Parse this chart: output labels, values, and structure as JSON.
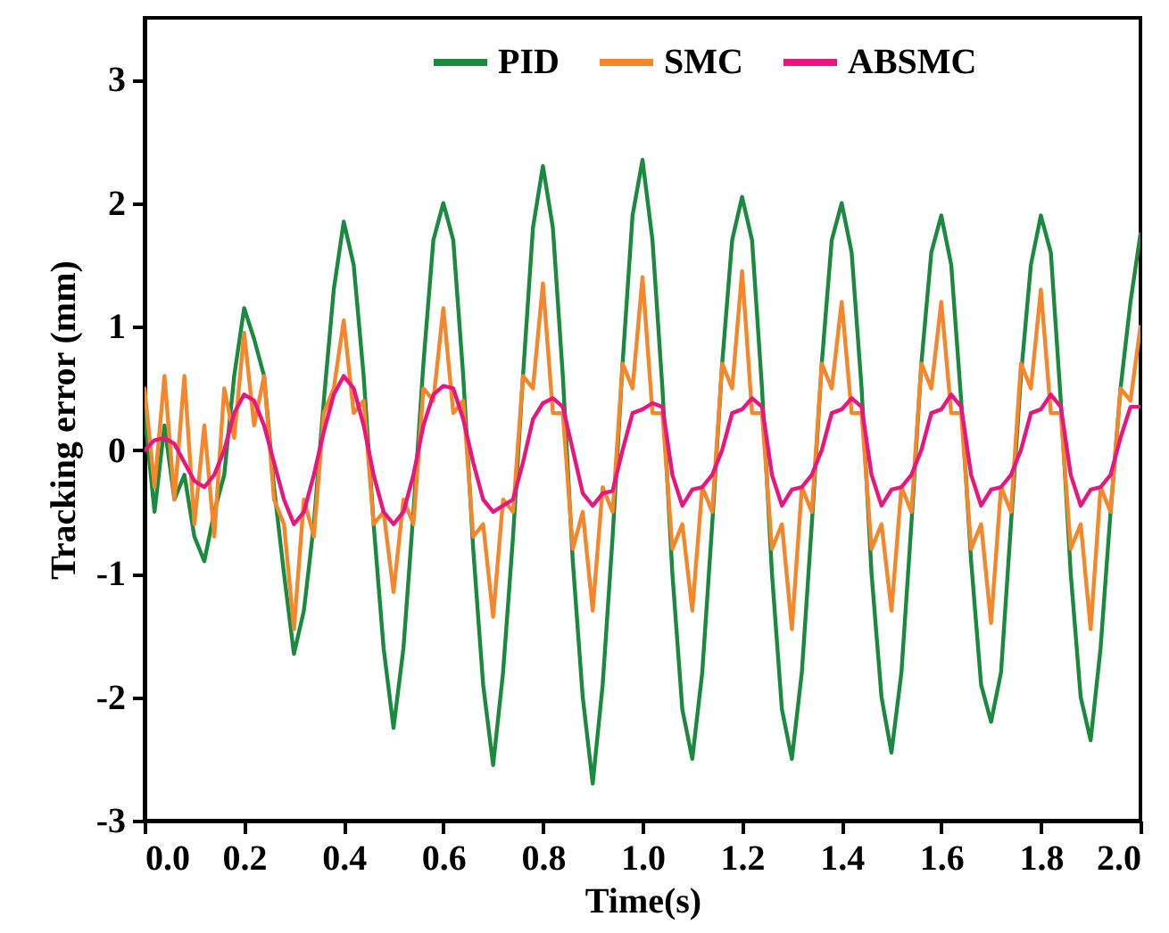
{
  "chart_data": {
    "type": "line",
    "xlabel": "Time(s)",
    "ylabel": "Tracking error (mm)",
    "x": [
      0,
      0.02,
      0.04,
      0.06,
      0.08,
      0.1,
      0.12,
      0.14,
      0.16,
      0.18,
      0.2,
      0.22,
      0.24,
      0.26,
      0.28,
      0.3,
      0.32,
      0.34,
      0.36,
      0.38,
      0.4,
      0.42,
      0.44,
      0.46,
      0.48,
      0.5,
      0.52,
      0.54,
      0.56,
      0.58,
      0.6,
      0.62,
      0.64,
      0.66,
      0.68,
      0.7,
      0.72,
      0.74,
      0.76,
      0.78,
      0.8,
      0.82,
      0.84,
      0.86,
      0.88,
      0.9,
      0.92,
      0.94,
      0.96,
      0.98,
      1,
      1.02,
      1.04,
      1.06,
      1.08,
      1.1,
      1.12,
      1.14,
      1.16,
      1.18,
      1.2,
      1.22,
      1.24,
      1.26,
      1.28,
      1.3,
      1.32,
      1.34,
      1.36,
      1.38,
      1.4,
      1.42,
      1.44,
      1.46,
      1.48,
      1.5,
      1.52,
      1.54,
      1.56,
      1.58,
      1.6,
      1.62,
      1.64,
      1.66,
      1.68,
      1.7,
      1.72,
      1.74,
      1.76,
      1.78,
      1.8,
      1.82,
      1.84,
      1.86,
      1.88,
      1.9,
      1.92,
      1.94,
      1.96,
      1.98,
      2
    ],
    "series": [
      {
        "name": "PID",
        "color": "#1a8a3e",
        "values": [
          0.3,
          -0.5,
          0.2,
          -0.4,
          -0.2,
          -0.7,
          -0.9,
          -0.5,
          -0.2,
          0.6,
          1.15,
          0.9,
          0.6,
          -0.3,
          -1.0,
          -1.65,
          -1.3,
          -0.6,
          0.4,
          1.3,
          1.85,
          1.5,
          0.6,
          -0.6,
          -1.6,
          -2.25,
          -1.6,
          -0.5,
          0.7,
          1.7,
          2.0,
          1.7,
          0.6,
          -0.8,
          -1.9,
          -2.55,
          -1.8,
          -0.7,
          0.6,
          1.8,
          2.3,
          1.8,
          0.6,
          -0.9,
          -2.0,
          -2.7,
          -1.9,
          -0.7,
          0.7,
          1.9,
          2.35,
          1.7,
          0.5,
          -1.0,
          -2.1,
          -2.5,
          -1.8,
          -0.6,
          0.7,
          1.7,
          2.05,
          1.7,
          0.5,
          -1.0,
          -2.1,
          -2.5,
          -1.8,
          -0.6,
          0.7,
          1.7,
          2.0,
          1.6,
          0.5,
          -1.0,
          -2.0,
          -2.45,
          -1.8,
          -0.6,
          0.7,
          1.6,
          1.9,
          1.5,
          0.4,
          -0.9,
          -1.9,
          -2.2,
          -1.8,
          -0.6,
          0.6,
          1.5,
          1.9,
          1.6,
          0.4,
          -1.0,
          -2.0,
          -2.35,
          -1.6,
          -0.5,
          0.5,
          1.2,
          1.75
        ]
      },
      {
        "name": "SMC",
        "color": "#f5872a",
        "values": [
          0.5,
          -0.3,
          0.6,
          -0.4,
          0.6,
          -0.6,
          0.2,
          -0.7,
          0.5,
          0.1,
          0.95,
          0.2,
          0.6,
          -0.4,
          -0.6,
          -1.45,
          -0.4,
          -0.7,
          0.3,
          0.5,
          1.05,
          0.3,
          0.4,
          -0.6,
          -0.5,
          -1.15,
          -0.4,
          -0.6,
          0.5,
          0.4,
          1.15,
          0.3,
          0.4,
          -0.7,
          -0.6,
          -1.35,
          -0.4,
          -0.5,
          0.6,
          0.5,
          1.35,
          0.3,
          0.3,
          -0.8,
          -0.5,
          -1.3,
          -0.3,
          -0.5,
          0.7,
          0.5,
          1.4,
          0.3,
          0.3,
          -0.8,
          -0.6,
          -1.3,
          -0.3,
          -0.5,
          0.7,
          0.5,
          1.45,
          0.3,
          0.3,
          -0.8,
          -0.6,
          -1.45,
          -0.3,
          -0.5,
          0.7,
          0.5,
          1.2,
          0.3,
          0.3,
          -0.8,
          -0.6,
          -1.3,
          -0.3,
          -0.5,
          0.7,
          0.5,
          1.2,
          0.3,
          0.3,
          -0.8,
          -0.6,
          -1.4,
          -0.3,
          -0.5,
          0.7,
          0.5,
          1.3,
          0.3,
          0.3,
          -0.8,
          -0.6,
          -1.45,
          -0.3,
          -0.5,
          0.5,
          0.4,
          1.0
        ]
      },
      {
        "name": "ABSMC",
        "color": "#e8177f",
        "values": [
          0,
          0.08,
          0.1,
          0.05,
          -0.1,
          -0.25,
          -0.3,
          -0.2,
          0.0,
          0.3,
          0.45,
          0.4,
          0.2,
          -0.1,
          -0.4,
          -0.6,
          -0.5,
          -0.2,
          0.15,
          0.45,
          0.6,
          0.5,
          0.2,
          -0.2,
          -0.5,
          -0.6,
          -0.5,
          -0.2,
          0.2,
          0.45,
          0.52,
          0.5,
          0.25,
          -0.1,
          -0.4,
          -0.5,
          -0.45,
          -0.4,
          -0.1,
          0.25,
          0.38,
          0.42,
          0.35,
          0.0,
          -0.35,
          -0.45,
          -0.35,
          -0.33,
          0.0,
          0.3,
          0.33,
          0.38,
          0.35,
          -0.2,
          -0.45,
          -0.32,
          -0.3,
          -0.2,
          0.0,
          0.3,
          0.33,
          0.42,
          0.35,
          -0.2,
          -0.45,
          -0.32,
          -0.3,
          -0.2,
          0.0,
          0.3,
          0.33,
          0.42,
          0.35,
          -0.2,
          -0.45,
          -0.32,
          -0.3,
          -0.2,
          0.0,
          0.3,
          0.33,
          0.45,
          0.35,
          -0.2,
          -0.45,
          -0.32,
          -0.3,
          -0.2,
          0.0,
          0.3,
          0.33,
          0.45,
          0.35,
          -0.2,
          -0.45,
          -0.32,
          -0.3,
          -0.2,
          0.1,
          0.35,
          0.35
        ]
      }
    ],
    "xlim": [
      0,
      2
    ],
    "xticks": [
      {
        "value": 0,
        "label": "0.0"
      },
      0.2,
      0.4,
      0.6,
      0.8,
      {
        "value": 1,
        "label": "1.0"
      },
      1.2,
      1.4,
      1.6,
      1.8,
      {
        "value": 2,
        "label": "2.0"
      }
    ],
    "ylim": [
      -3,
      3.5
    ],
    "yticks": [
      -3,
      -2,
      -1,
      0,
      1,
      2,
      3
    ],
    "legend": "top"
  }
}
